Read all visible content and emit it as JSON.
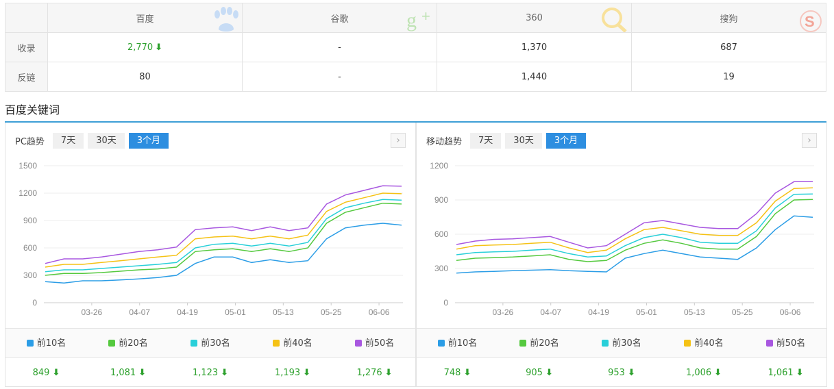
{
  "engines": {
    "headers": [
      "百度",
      "谷歌",
      "360",
      "搜狗"
    ],
    "rows": [
      {
        "label": "收录",
        "values": [
          "2,770",
          "-",
          "1,370",
          "687"
        ],
        "trend": [
          true,
          false,
          false,
          false
        ]
      },
      {
        "label": "反链",
        "values": [
          "80",
          "-",
          "1,440",
          "19"
        ],
        "trend": [
          false,
          false,
          false,
          false
        ]
      }
    ],
    "arrow": "⬇"
  },
  "section_title": "百度关键词",
  "colors": {
    "top10": "#2b9de6",
    "top20": "#55c93f",
    "top30": "#28cfd9",
    "top40": "#f5c215",
    "top50": "#a857e0",
    "accent": "#2d8ee0",
    "green": "#2ea12e"
  },
  "pc": {
    "label": "PC趋势",
    "tabs": [
      "7天",
      "30天",
      "3个月"
    ],
    "active_tab": "3个月",
    "next_icon": "›",
    "legend": [
      "前10名",
      "前20名",
      "前30名",
      "前40名",
      "前50名"
    ],
    "values": [
      "849",
      "1,081",
      "1,123",
      "1,193",
      "1,276"
    ]
  },
  "mobile": {
    "label": "移动趋势",
    "tabs": [
      "7天",
      "30天",
      "3个月"
    ],
    "active_tab": "3个月",
    "next_icon": "›",
    "legend": [
      "前10名",
      "前20名",
      "前30名",
      "前40名",
      "前50名"
    ],
    "values": [
      "748",
      "905",
      "953",
      "1,006",
      "1,061"
    ]
  },
  "chart_data": [
    {
      "type": "line",
      "title": "PC趋势",
      "x_ticks": [
        "03-26",
        "04-07",
        "04-19",
        "05-01",
        "05-13",
        "05-25",
        "06-06"
      ],
      "y_ticks": [
        0,
        300,
        600,
        900,
        1200,
        1500
      ],
      "ylim": [
        0,
        1500
      ],
      "grid": true,
      "x_points": 20,
      "series": [
        {
          "name": "前10名",
          "values": [
            230,
            215,
            240,
            240,
            250,
            260,
            275,
            300,
            430,
            500,
            500,
            440,
            470,
            440,
            460,
            700,
            820,
            850,
            870,
            849
          ]
        },
        {
          "name": "前20名",
          "values": [
            300,
            320,
            320,
            330,
            345,
            360,
            370,
            390,
            560,
            580,
            590,
            560,
            590,
            560,
            600,
            870,
            990,
            1040,
            1090,
            1081
          ]
        },
        {
          "name": "前30名",
          "values": [
            340,
            360,
            360,
            375,
            390,
            405,
            420,
            440,
            600,
            640,
            650,
            620,
            650,
            620,
            660,
            920,
            1040,
            1090,
            1130,
            1123
          ]
        },
        {
          "name": "前40名",
          "values": [
            390,
            420,
            420,
            440,
            460,
            480,
            500,
            520,
            700,
            720,
            730,
            700,
            730,
            700,
            740,
            1000,
            1100,
            1150,
            1200,
            1193
          ]
        },
        {
          "name": "前50名",
          "values": [
            430,
            480,
            480,
            500,
            530,
            560,
            580,
            610,
            800,
            820,
            830,
            790,
            830,
            790,
            820,
            1080,
            1180,
            1230,
            1280,
            1276
          ]
        }
      ]
    },
    {
      "type": "line",
      "title": "移动趋势",
      "x_ticks": [
        "03-26",
        "04-07",
        "04-19",
        "05-01",
        "05-13",
        "05-25",
        "06-06"
      ],
      "y_ticks": [
        0,
        300,
        600,
        900,
        1200
      ],
      "ylim": [
        0,
        1200
      ],
      "grid": true,
      "x_points": 20,
      "series": [
        {
          "name": "前10名",
          "values": [
            260,
            270,
            275,
            280,
            285,
            290,
            280,
            275,
            270,
            390,
            430,
            460,
            430,
            400,
            390,
            380,
            480,
            640,
            760,
            748
          ]
        },
        {
          "name": "前20名",
          "values": [
            370,
            390,
            395,
            400,
            410,
            420,
            380,
            360,
            370,
            460,
            520,
            550,
            520,
            480,
            470,
            470,
            580,
            780,
            900,
            905
          ]
        },
        {
          "name": "前30名",
          "values": [
            420,
            440,
            445,
            450,
            460,
            470,
            430,
            400,
            410,
            500,
            570,
            600,
            570,
            530,
            520,
            520,
            630,
            830,
            950,
            953
          ]
        },
        {
          "name": "前40名",
          "values": [
            470,
            500,
            505,
            510,
            520,
            530,
            480,
            440,
            460,
            560,
            640,
            660,
            630,
            600,
            590,
            590,
            700,
            890,
            1000,
            1006
          ]
        },
        {
          "name": "前50名",
          "values": [
            510,
            540,
            555,
            560,
            570,
            580,
            530,
            480,
            500,
            600,
            700,
            720,
            690,
            660,
            650,
            650,
            780,
            960,
            1060,
            1061
          ]
        }
      ]
    }
  ]
}
